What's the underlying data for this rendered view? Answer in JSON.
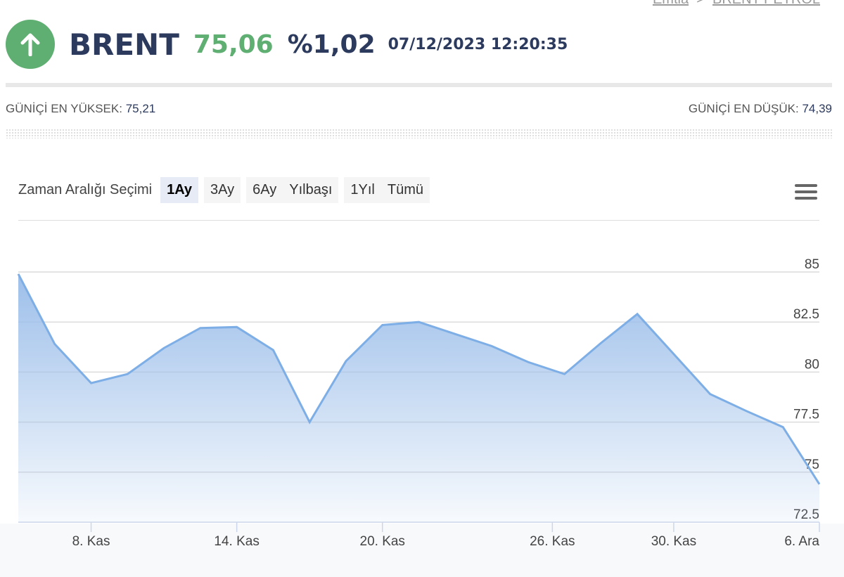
{
  "breadcrumb": {
    "items": [
      "Emtia",
      "BRENT PETROL"
    ],
    "separator": ">"
  },
  "header": {
    "symbol": "BRENT",
    "price": "75,06",
    "change": "%1,02",
    "datetime": "07/12/2023 12:20:35",
    "direction_icon": "arrow-up-icon",
    "up_color": "#5fae72"
  },
  "stats": {
    "high_label": "GÜNİÇİ EN YÜKSEK:",
    "high": "75,21",
    "low_label": "GÜNİÇİ EN DÜŞÜK:",
    "low": "74,39"
  },
  "range": {
    "label": "Zaman Aralığı Seçimi",
    "buttons": [
      "1Ay",
      "3Ay",
      "6Ay",
      "Yılbaşı",
      "1Yıl",
      "Tümü"
    ],
    "selected": "1Ay"
  },
  "chart_data": {
    "type": "area",
    "x": [
      "2023-11-06",
      "2023-11-07",
      "2023-11-08",
      "2023-11-09",
      "2023-11-10",
      "2023-11-13",
      "2023-11-14",
      "2023-11-15",
      "2023-11-16",
      "2023-11-17",
      "2023-11-20",
      "2023-11-21",
      "2023-11-22",
      "2023-11-23",
      "2023-11-24",
      "2023-11-27",
      "2023-11-28",
      "2023-11-29",
      "2023-11-30",
      "2023-12-01",
      "2023-12-04",
      "2023-12-05",
      "2023-12-06"
    ],
    "values": [
      84.9,
      81.4,
      79.45,
      79.9,
      81.2,
      82.2,
      82.25,
      81.1,
      77.5,
      80.55,
      82.35,
      82.5,
      81.9,
      81.3,
      80.5,
      79.9,
      81.45,
      82.9,
      80.9,
      78.9,
      78.05,
      77.25,
      74.4
    ],
    "ylim": [
      72.5,
      85
    ],
    "yticks": [
      "85",
      "82.5",
      "80",
      "77.5",
      "75",
      "72.5"
    ],
    "ytick_values": [
      85,
      82.5,
      80,
      77.5,
      75,
      72.5
    ],
    "xticks": [
      {
        "label": "8. Kas",
        "date": "2023-11-08"
      },
      {
        "label": "14. Kas",
        "date": "2023-11-14"
      },
      {
        "label": "20. Kas",
        "date": "2023-11-20"
      },
      {
        "label": "26. Kas",
        "date": "2023-11-26"
      },
      {
        "label": "30. Kas",
        "date": "2023-11-30"
      },
      {
        "label": "6. Ara",
        "date": "2023-12-06"
      }
    ],
    "grid": true,
    "line_color": "#7eaee6",
    "fill_color": "#9dbfea"
  }
}
